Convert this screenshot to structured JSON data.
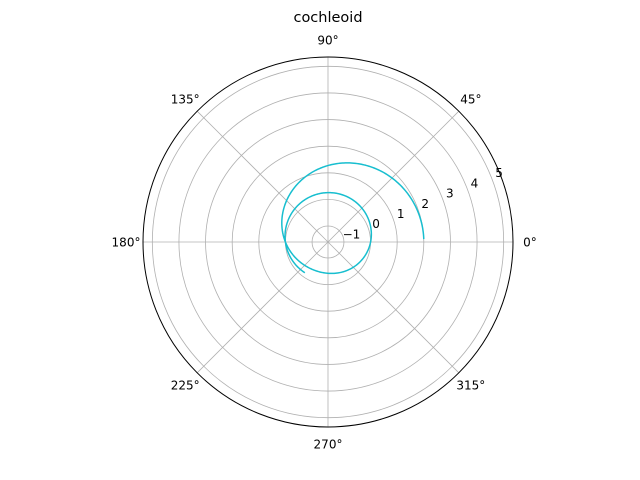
{
  "chart_data": {
    "type": "line",
    "projection": "polar",
    "title": "cochleoid",
    "radial_range": [
      -1.6,
      5.35
    ],
    "radial_ticks": [
      -1,
      0,
      1,
      2,
      3,
      4,
      5
    ],
    "radial_tick_labels": [
      "−1",
      "0",
      "1",
      "2",
      "3",
      "4",
      "5"
    ],
    "radial_label_angle_deg": 22.5,
    "angular_ticks_deg": [
      0,
      45,
      90,
      135,
      180,
      225,
      270,
      315
    ],
    "angular_tick_labels": [
      "0°",
      "45°",
      "90°",
      "135°",
      "180°",
      "225°",
      "270°",
      "315°"
    ],
    "grid": true,
    "series": [
      {
        "color": "#17becf",
        "function": "r = 2*sin(theta)/theta",
        "theta_range_rad": [
          0.03,
          10.35
        ]
      }
    ]
  }
}
